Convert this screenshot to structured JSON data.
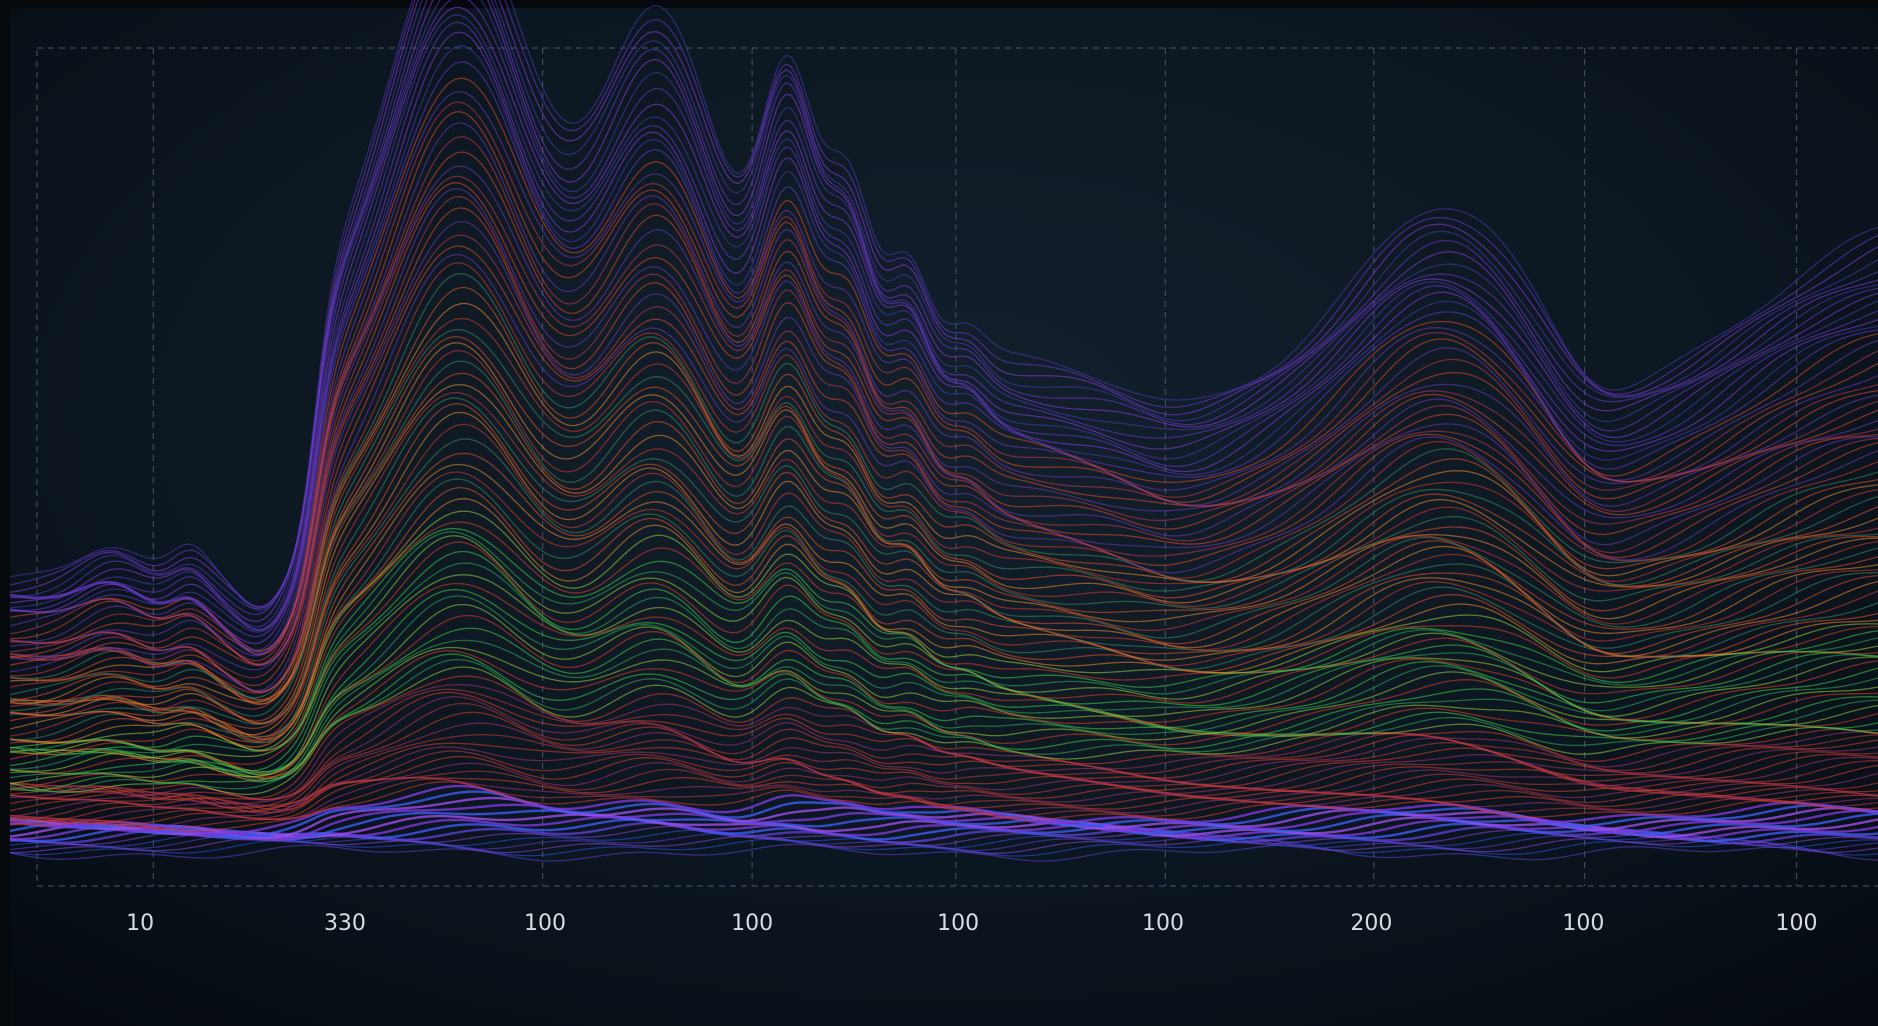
{
  "axis": {
    "labels": [
      "10",
      "330",
      "100",
      "100",
      "100",
      "100",
      "200",
      "100",
      "100"
    ]
  }
}
